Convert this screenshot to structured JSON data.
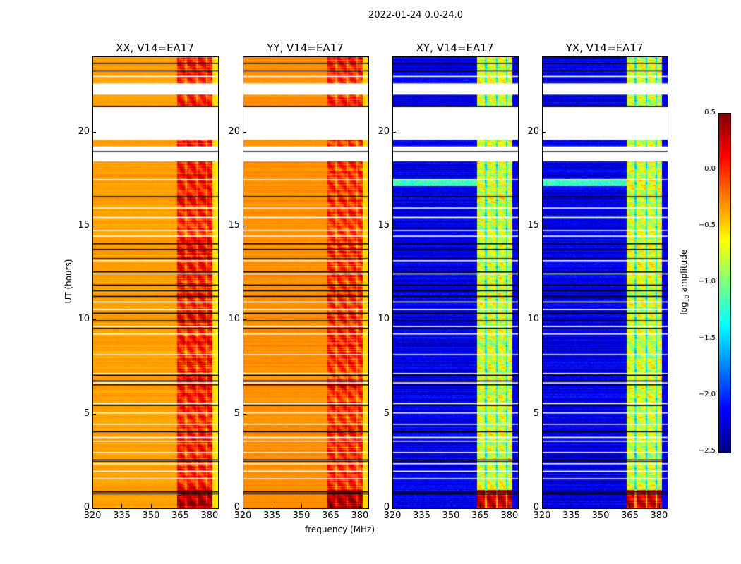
{
  "suptitle": "2022-01-24 0.0-24.0",
  "xlabel": "frequency (MHz)",
  "ylabel": "UT (hours)",
  "colorbar": {
    "label_main": "log",
    "label_sub": "10",
    "label_rest": " amplitude",
    "ticks": [
      "0.5",
      "0.0",
      "−0.5",
      "−1.0",
      "−1.5",
      "−2.0",
      "−2.5"
    ],
    "tick_values": [
      0.5,
      0,
      -0.5,
      -1,
      -1.5,
      -2,
      -2.5
    ],
    "range": [
      -2.5,
      0.5
    ],
    "colormap": "jet"
  },
  "chart_data": {
    "type": "heatmap",
    "title": "2022-01-24 0.0-24.0",
    "xlabel": "frequency (MHz)",
    "ylabel": "UT (hours)",
    "xlim": [
      320,
      384
    ],
    "ylim": [
      0,
      24
    ],
    "x_ticks": [
      "320",
      "335",
      "350",
      "365",
      "380"
    ],
    "x_tick_values": [
      320,
      335,
      350,
      365,
      380
    ],
    "y_ticks": [
      "0",
      "5",
      "10",
      "15",
      "20"
    ],
    "y_tick_values": [
      0,
      5,
      10,
      15,
      20
    ],
    "panels": [
      {
        "title": "XX, V14=EA17",
        "base_level": -0.35,
        "band_level": 0.05,
        "edge_level": -0.6
      },
      {
        "title": "YY, V14=EA17",
        "base_level": -0.3,
        "band_level": 0.0,
        "edge_level": -0.55
      },
      {
        "title": "XY, V14=EA17",
        "base_level": -2.2,
        "band_level": -0.75,
        "edge_level": -2.2
      },
      {
        "title": "YX, V14=EA17",
        "base_level": -2.2,
        "band_level": -0.75,
        "edge_level": -2.2
      }
    ],
    "rfi_band_mhz": [
      363,
      381
    ],
    "band_gaps_mhz": [
      367.5,
      373,
      378
    ],
    "flagged_hours": [
      [
        22.0,
        22.6
      ],
      [
        19.6,
        21.35
      ],
      [
        18.45,
        19.25
      ]
    ],
    "thin_flag_hours": [
      23.0,
      17.5,
      16.0,
      15.5,
      14.8,
      14.5,
      13.2,
      12.5,
      11.0,
      10.6,
      9.7,
      9.3,
      8.2,
      7.2,
      6.7,
      5.6,
      5.1,
      4.5,
      3.8,
      3.6,
      3.0,
      2.4,
      2.0,
      1.6
    ],
    "boundary_hours": [
      23.7,
      23.3,
      21.4,
      19.0,
      16.6,
      14.1,
      13.8,
      13.3,
      12.6,
      11.9,
      11.6,
      11.3,
      10.4,
      10.0,
      9.6,
      7.1,
      6.8,
      6.6,
      5.5,
      4.1,
      2.6,
      2.5,
      0.9,
      0.8
    ],
    "cross_hand_bright_hours": [
      17.15,
      17.55
    ]
  }
}
